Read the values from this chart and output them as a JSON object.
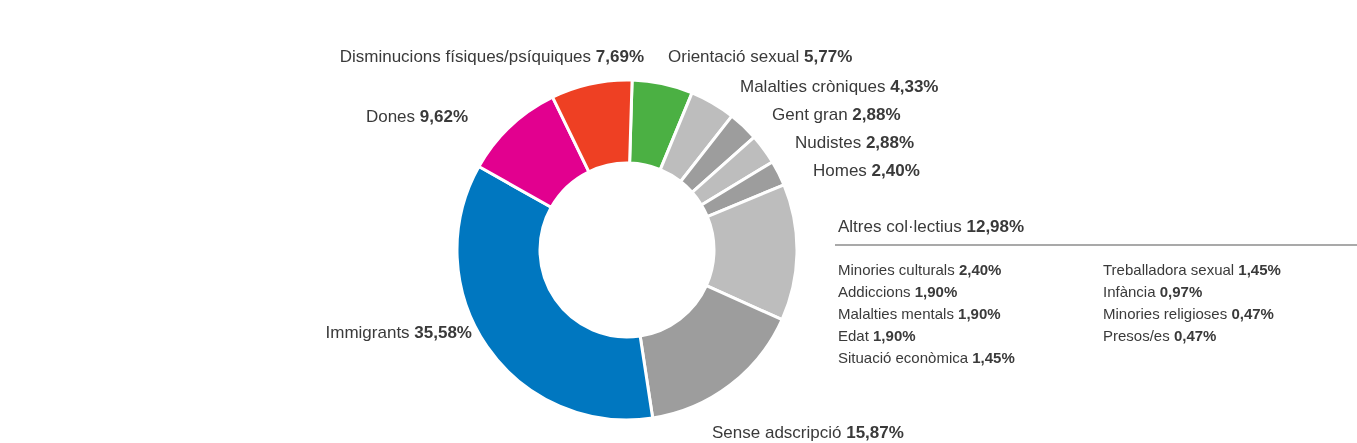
{
  "chart_data": {
    "type": "donut",
    "categories": [
      "Orientació sexual",
      "Malalties cròniques",
      "Gent gran",
      "Nudistes",
      "Homes",
      "Altres col·lectius",
      "Sense adscripció",
      "Immigrants",
      "Dones",
      "Disminucions físiques/psíquiques"
    ],
    "values": [
      5.77,
      4.33,
      2.88,
      2.88,
      2.4,
      12.98,
      15.87,
      35.58,
      9.62,
      7.69
    ],
    "value_labels": [
      "5,77%",
      "4,33%",
      "2,88%",
      "2,88%",
      "2,40%",
      "12,98%",
      "15,87%",
      "35,58%",
      "9,62%",
      "7,69%"
    ],
    "colors": [
      "#4bb043",
      "#bdbdbd",
      "#9d9d9d",
      "#bdbdbd",
      "#9d9d9d",
      "#bdbdbd",
      "#9d9d9d",
      "#0077c0",
      "#e2008f",
      "#ee4023"
    ],
    "annotations": [
      "Minories culturals 2,40%",
      "Addiccions 1,90%",
      "Malalties mentals 1,90%",
      "Edat 1,90%",
      "Situació econòmica 1,45%",
      "Treballadora sexual 1,45%",
      "Infància 0,97%",
      "Minories religioses 0,47%",
      "Presos/es 0,47%"
    ]
  }
}
